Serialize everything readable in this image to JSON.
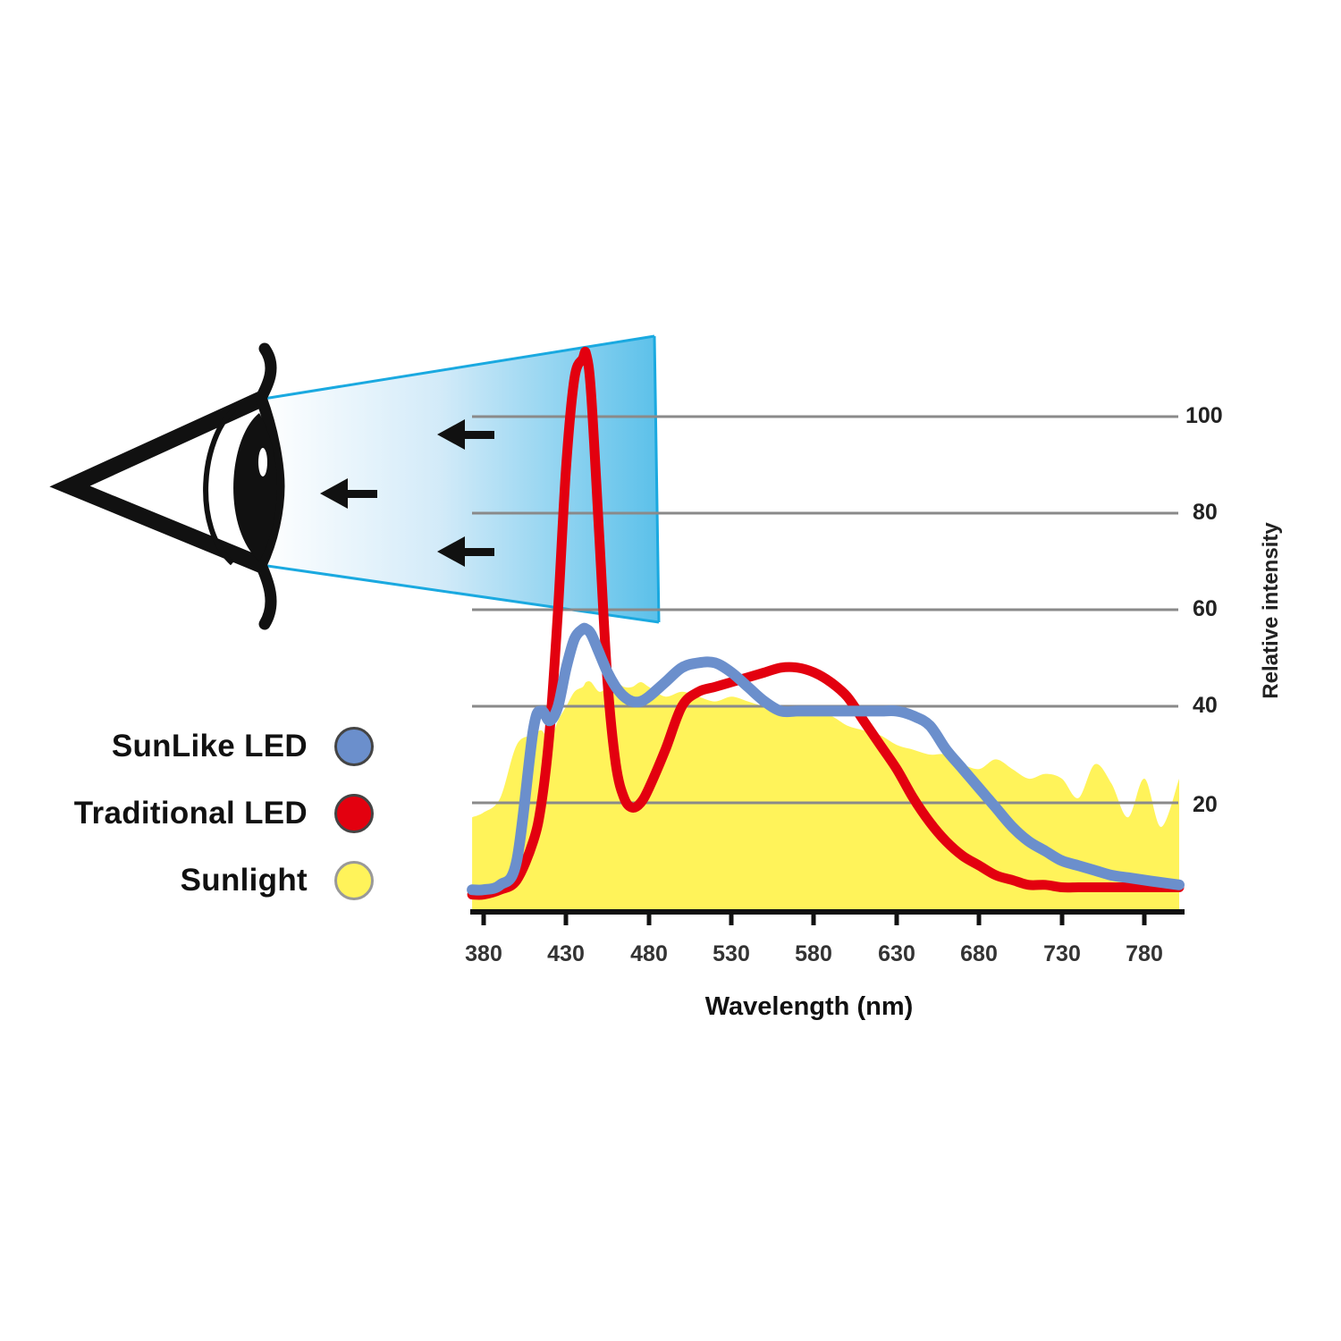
{
  "legend": {
    "items": [
      {
        "label": "SunLike LED",
        "color": "#6b8fcc"
      },
      {
        "label": "Traditional LED",
        "color": "#e3000f"
      },
      {
        "label": "Sunlight",
        "color": "#fff35a"
      }
    ]
  },
  "axes": {
    "xlabel": "Wavelength (nm)",
    "ylabel": "Relative intensity",
    "xticks": [
      "380",
      "430",
      "480",
      "530",
      "580",
      "630",
      "680",
      "730",
      "780"
    ],
    "yticks": [
      "100",
      "80",
      "60",
      "40",
      "20"
    ]
  },
  "illustration": {
    "eye_icon": "eye",
    "light_beam_color": "#29abe2",
    "arrow_count": 3
  },
  "chart_data": {
    "type": "line",
    "title": "",
    "xlabel": "Wavelength (nm)",
    "ylabel": "Relative intensity",
    "xlim": [
      373,
      801
    ],
    "ylim": [
      0,
      105
    ],
    "grid": true,
    "grid_lines_y": [
      20,
      40,
      60,
      80,
      100
    ],
    "legend_position": "left",
    "x_ticks": [
      380,
      430,
      480,
      530,
      580,
      630,
      680,
      730,
      780
    ],
    "y_ticks": [
      20,
      40,
      60,
      80,
      100
    ],
    "x": [
      373,
      380,
      390,
      400,
      410,
      415,
      420,
      425,
      430,
      435,
      440,
      442,
      445,
      450,
      455,
      460,
      465,
      470,
      475,
      480,
      490,
      500,
      510,
      520,
      530,
      540,
      550,
      560,
      570,
      580,
      590,
      600,
      610,
      620,
      630,
      640,
      650,
      660,
      670,
      680,
      690,
      700,
      710,
      720,
      730,
      740,
      750,
      760,
      770,
      780,
      790,
      801
    ],
    "series": [
      {
        "name": "SunLike LED",
        "type": "line",
        "color": "#6b8fcc",
        "values": [
          2,
          2,
          3,
          8,
          35,
          39,
          37,
          40,
          48,
          54,
          56,
          56,
          55,
          51,
          47,
          44,
          42,
          41,
          41,
          42,
          45,
          48,
          49,
          49,
          47,
          44,
          41,
          39,
          39,
          39,
          39,
          39,
          39,
          39,
          39,
          38,
          36,
          31,
          27,
          23,
          19,
          15,
          12,
          10,
          8,
          7,
          6,
          5,
          4.5,
          4,
          3.5,
          3
        ]
      },
      {
        "name": "Traditional LED",
        "type": "line",
        "color": "#e3000f",
        "values": [
          1,
          1,
          2,
          4,
          12,
          20,
          35,
          60,
          90,
          108,
          112,
          113,
          105,
          75,
          45,
          28,
          21,
          19,
          20,
          23,
          31,
          40,
          43,
          44,
          45,
          46,
          47,
          48,
          48,
          47,
          45,
          42,
          37,
          32,
          27,
          21,
          16,
          12,
          9,
          7,
          5,
          4,
          3,
          3,
          2.5,
          2.5,
          2.5,
          2.5,
          2.5,
          2.5,
          2.5,
          2.5
        ]
      },
      {
        "name": "Sunlight",
        "type": "area",
        "color": "#fff35a",
        "values": [
          17,
          18,
          21,
          32,
          34,
          35,
          33,
          37,
          40,
          43,
          44,
          45,
          45,
          43,
          44,
          45,
          44,
          44,
          45,
          44,
          42,
          43,
          42,
          41,
          42,
          41,
          40,
          40,
          39,
          38,
          38,
          36,
          35,
          34,
          32,
          31,
          30,
          30,
          28,
          27,
          29,
          27,
          25,
          26,
          25,
          21,
          28,
          24,
          17,
          25,
          15,
          25
        ]
      }
    ]
  }
}
